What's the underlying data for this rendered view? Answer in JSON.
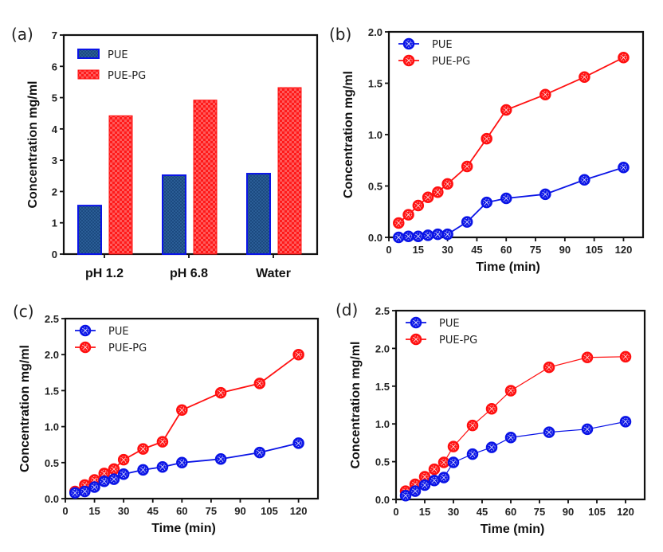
{
  "figure": {
    "panels": [
      "(a)",
      "(b)",
      "(c)",
      "(d)"
    ]
  },
  "colors": {
    "pue": "#0a14e6",
    "pue_fill": "#1c4a80",
    "pue_pg": "#ff1010",
    "pue_pg_check": "#ff5050",
    "axis": "#111111"
  },
  "chart_data": [
    {
      "panel": "(a)",
      "type": "bar",
      "title": "",
      "xlabel": "",
      "ylabel": "Concentration mg/ml",
      "ylim": [
        0,
        7
      ],
      "yticks": [
        "0",
        "1",
        "2",
        "3",
        "4",
        "5",
        "6",
        "7"
      ],
      "categories": [
        "pH 1.2",
        "pH 6.8",
        "Water"
      ],
      "series": [
        {
          "name": "PUE",
          "values": [
            1.55,
            2.52,
            2.57
          ]
        },
        {
          "name": "PUE-PG",
          "values": [
            4.42,
            4.92,
            5.32
          ]
        }
      ],
      "legend": "top-left",
      "grid": false
    },
    {
      "panel": "(b)",
      "type": "line",
      "title": "",
      "xlabel": "Time (min)",
      "ylabel": "Concentration mg/ml",
      "xlim": [
        0,
        130
      ],
      "ylim": [
        0,
        2.0
      ],
      "xticks": [
        "0",
        "15",
        "30",
        "45",
        "60",
        "75",
        "90",
        "105",
        "120"
      ],
      "yticks": [
        "0.0",
        "0.5",
        "1.0",
        "1.5",
        "2.0"
      ],
      "x": [
        5,
        10,
        15,
        20,
        25,
        30,
        40,
        50,
        60,
        80,
        100,
        120
      ],
      "series": [
        {
          "name": "PUE",
          "values": [
            0.0,
            0.01,
            0.01,
            0.02,
            0.03,
            0.03,
            0.15,
            0.34,
            0.38,
            0.42,
            0.56,
            0.68
          ]
        },
        {
          "name": "PUE-PG",
          "values": [
            0.14,
            0.22,
            0.31,
            0.39,
            0.44,
            0.52,
            0.69,
            0.96,
            1.24,
            1.39,
            1.56,
            1.75
          ]
        }
      ],
      "legend": "top-left",
      "grid": false
    },
    {
      "panel": "(c)",
      "type": "line",
      "title": "",
      "xlabel": "Time (min)",
      "ylabel": "Concentration mg/ml",
      "xlim": [
        0,
        130
      ],
      "ylim": [
        0,
        2.5
      ],
      "xticks": [
        "0",
        "15",
        "30",
        "45",
        "60",
        "75",
        "90",
        "105",
        "120"
      ],
      "yticks": [
        "0.0",
        "0.5",
        "1.0",
        "1.5",
        "2.0",
        "2.5"
      ],
      "x": [
        5,
        10,
        15,
        20,
        25,
        30,
        40,
        50,
        60,
        80,
        100,
        120
      ],
      "series": [
        {
          "name": "PUE",
          "values": [
            0.08,
            0.1,
            0.16,
            0.24,
            0.27,
            0.34,
            0.4,
            0.44,
            0.5,
            0.55,
            0.64,
            0.77
          ]
        },
        {
          "name": "PUE-PG",
          "values": [
            0.1,
            0.19,
            0.26,
            0.35,
            0.41,
            0.54,
            0.69,
            0.79,
            1.23,
            1.47,
            1.6,
            2.0
          ]
        }
      ],
      "legend": "top-left",
      "grid": false
    },
    {
      "panel": "(d)",
      "type": "line",
      "title": "",
      "xlabel": "Time (min)",
      "ylabel": "Concentration mg/ml",
      "xlim": [
        0,
        130
      ],
      "ylim": [
        0,
        2.5
      ],
      "xticks": [
        "0",
        "15",
        "30",
        "45",
        "60",
        "75",
        "90",
        "105",
        "120"
      ],
      "yticks": [
        "0.0",
        "0.5",
        "1.0",
        "1.5",
        "2.0",
        "2.5"
      ],
      "x": [
        5,
        10,
        15,
        20,
        25,
        30,
        40,
        50,
        60,
        80,
        100,
        120
      ],
      "series": [
        {
          "name": "PUE",
          "values": [
            0.05,
            0.11,
            0.19,
            0.25,
            0.29,
            0.49,
            0.6,
            0.69,
            0.82,
            0.89,
            0.93,
            1.03
          ]
        },
        {
          "name": "PUE-PG",
          "values": [
            0.11,
            0.2,
            0.3,
            0.4,
            0.49,
            0.7,
            0.98,
            1.2,
            1.44,
            1.75,
            1.88,
            1.89
          ]
        }
      ],
      "legend": "top-left",
      "grid": false
    }
  ]
}
